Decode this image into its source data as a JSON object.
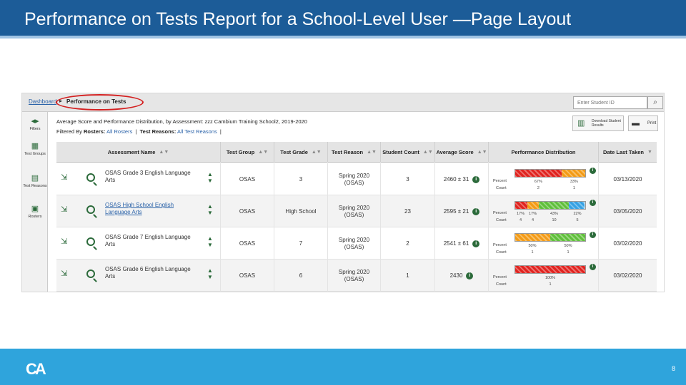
{
  "slide": {
    "title": "Performance on Tests Report for a School-Level User —Page Layout",
    "page_number": "8",
    "logo": "CA"
  },
  "app": {
    "breadcrumb": {
      "home": "Dashboard",
      "current": "Performance on Tests"
    },
    "student_search_placeholder": "Enter Student ID",
    "nav": [
      {
        "label": "Filters",
        "icon": "filters-icon"
      },
      {
        "label": "Test Groups",
        "icon": "test-groups-icon"
      },
      {
        "label": "Test Reasons",
        "icon": "test-reasons-icon"
      },
      {
        "label": "Rosters",
        "icon": "rosters-icon"
      }
    ],
    "report_heading": "Average Score and Performance Distribution, by Assessment: zzz Cambium Training School2, 2019-2020",
    "filter_prefix": "Filtered By",
    "filter_rosters_label": "Rosters:",
    "filter_rosters_value": "All Rosters",
    "filter_reasons_label": "Test Reasons:",
    "filter_reasons_value": "All Test Reasons",
    "download_label": "Download Student Results",
    "print_label": "Print",
    "columns": [
      "Assessment Name",
      "Test Group",
      "Test Grade",
      "Test Reason",
      "Student Count",
      "Average Score",
      "Performance Distribution",
      "Date Last Taken"
    ],
    "dist_row_labels": {
      "percent": "Percent",
      "count": "Count"
    },
    "rows": [
      {
        "name": "OSAS Grade 3 English Language Arts",
        "name_link": false,
        "group": "OSAS",
        "grade": "3",
        "reason": "Spring 2020 (OSAS)",
        "count": "3",
        "score": "2460 ± 31",
        "dist": [
          {
            "color": "red",
            "fraction": 0.667,
            "pct": "67%",
            "cnt": "2"
          },
          {
            "color": "orange",
            "fraction": 0.333,
            "pct": "33%",
            "cnt": "1"
          }
        ],
        "date": "03/13/2020"
      },
      {
        "name": "OSAS High School English Language Arts",
        "name_link": true,
        "group": "OSAS",
        "grade": "High School",
        "reason": "Spring 2020 (OSAS)",
        "count": "23",
        "score": "2595 ± 21",
        "dist": [
          {
            "color": "red",
            "fraction": 0.17,
            "pct": "17%",
            "cnt": "4"
          },
          {
            "color": "orange",
            "fraction": 0.17,
            "pct": "17%",
            "cnt": "4"
          },
          {
            "color": "green",
            "fraction": 0.43,
            "pct": "43%",
            "cnt": "10"
          },
          {
            "color": "blue",
            "fraction": 0.22,
            "pct": "22%",
            "cnt": "5"
          }
        ],
        "date": "03/05/2020"
      },
      {
        "name": "OSAS Grade 7 English Language Arts",
        "name_link": false,
        "group": "OSAS",
        "grade": "7",
        "reason": "Spring 2020 (OSAS)",
        "count": "2",
        "score": "2541 ± 61",
        "dist": [
          {
            "color": "orange",
            "fraction": 0.5,
            "pct": "50%",
            "cnt": "1"
          },
          {
            "color": "green",
            "fraction": 0.5,
            "pct": "50%",
            "cnt": "1"
          }
        ],
        "date": "03/02/2020"
      },
      {
        "name": "OSAS Grade 6 English Language Arts",
        "name_link": false,
        "group": "OSAS",
        "grade": "6",
        "reason": "Spring 2020 (OSAS)",
        "count": "1",
        "score": "2430",
        "dist": [
          {
            "color": "red",
            "fraction": 1.0,
            "pct": "100%",
            "cnt": "1"
          }
        ],
        "date": "03/02/2020"
      }
    ]
  }
}
